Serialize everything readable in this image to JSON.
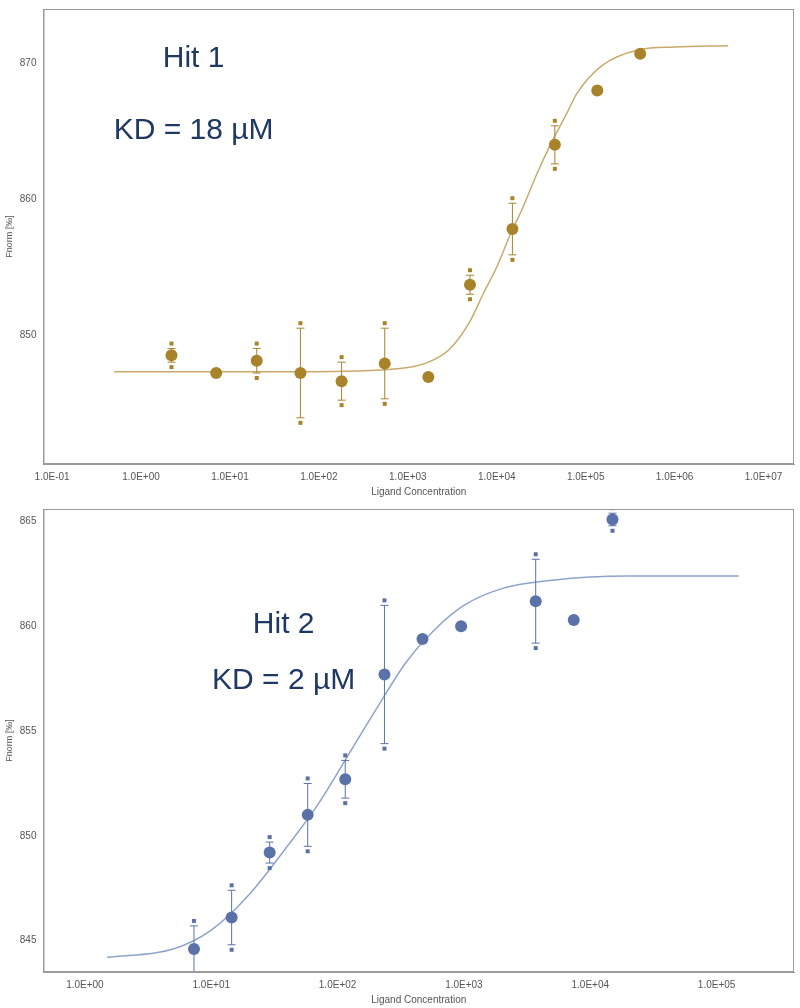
{
  "chart_data": [
    {
      "type": "scatter",
      "annotation": [
        "Hit 1",
        "KD = 18 µM"
      ],
      "x_label": "Ligand Concentration",
      "y_label": "Fnorm [‰]",
      "log": "x",
      "grid": false,
      "xlim": [
        0.08,
        22000000
      ],
      "xticks": [
        {
          "value": 0.1,
          "label": "1.0E-01"
        },
        {
          "value": 1,
          "label": "1.0E+00"
        },
        {
          "value": 10,
          "label": "1.0E+01"
        },
        {
          "value": 100,
          "label": "1.0E+02"
        },
        {
          "value": 1000,
          "label": "1.0E+03"
        },
        {
          "value": 10000,
          "label": "1.0E+04"
        },
        {
          "value": 100000,
          "label": "1.0E+05"
        },
        {
          "value": 1000000,
          "label": "1.0E+06"
        },
        {
          "value": 10000000,
          "label": "1.0E+07"
        }
      ],
      "ylim": [
        840.5,
        874
      ],
      "yticks": [
        850,
        860,
        870
      ],
      "series": [
        {
          "type": "scatter",
          "color": "#a8832a",
          "marker": "circle",
          "x": [
            2.2,
            7,
            20,
            62,
            180,
            550,
            1700,
            5000,
            15000,
            45000,
            135000,
            410000
          ],
          "values": [
            848.5,
            847.2,
            848.1,
            847.2,
            846.6,
            847.9,
            846.9,
            853.7,
            857.8,
            864.0,
            868.0,
            870.7
          ],
          "errors": [
            0.5,
            0,
            0.9,
            3.3,
            1.4,
            2.6,
            0,
            0.7,
            1.9,
            1.4,
            0,
            0
          ]
        },
        {
          "type": "line",
          "color": "#c9aa6c",
          "line_style": "solid",
          "x": [
            0.5,
            100,
            1000,
            2000,
            3000,
            5000,
            7000,
            10000,
            14000,
            20000,
            28000,
            40000,
            60000,
            80000,
            150000,
            400000,
            1000000,
            4000000
          ],
          "values": [
            847.3,
            847.3,
            847.6,
            848.2,
            849.0,
            851.0,
            853.0,
            855.0,
            857.3,
            859.5,
            861.8,
            864.0,
            866.2,
            867.8,
            869.8,
            871.0,
            871.2,
            871.3
          ]
        }
      ]
    },
    {
      "type": "scatter",
      "annotation": [
        "Hit 2",
        "KD = 2 µM"
      ],
      "x_label": "Ligand Concentration",
      "y_label": "Fnorm [‰]",
      "log": "x",
      "grid": false,
      "xlim": [
        0.47,
        410000
      ],
      "xticks": [
        {
          "value": 1,
          "label": "1.0E+00"
        },
        {
          "value": 10,
          "label": "1.0E+01"
        },
        {
          "value": 100,
          "label": "1.0E+02"
        },
        {
          "value": 1000,
          "label": "1.0E+03"
        },
        {
          "value": 10000,
          "label": "1.0E+04"
        },
        {
          "value": 100000,
          "label": "1.0E+05"
        }
      ],
      "ylim": [
        843.5,
        865.6
      ],
      "yticks": [
        845,
        850,
        855,
        860,
        865
      ],
      "series": [
        {
          "type": "scatter",
          "color": "#5a72a8",
          "marker": "circle",
          "x": [
            7.3,
            14.5,
            29,
            58,
            115,
            235,
            470,
            950,
            3700,
            7400,
            15000
          ],
          "values": [
            844.6,
            846.1,
            849.2,
            851.0,
            852.7,
            857.7,
            859.4,
            860.0,
            861.2,
            860.3,
            865.1
          ],
          "errors": [
            1.1,
            1.3,
            0.5,
            1.5,
            0.9,
            3.3,
            0,
            0,
            2.0,
            0,
            0.3
          ]
        },
        {
          "type": "line",
          "color": "#8ea3cc",
          "line_style": "solid",
          "x": [
            1.5,
            5,
            10,
            20,
            40,
            70,
            120,
            200,
            350,
            600,
            1000,
            2000,
            5000,
            20000,
            150000
          ],
          "values": [
            844.2,
            844.6,
            845.5,
            847.2,
            849.5,
            851.5,
            853.8,
            856.0,
            858.3,
            859.9,
            861.0,
            861.8,
            862.2,
            862.4,
            862.4
          ]
        }
      ]
    }
  ]
}
